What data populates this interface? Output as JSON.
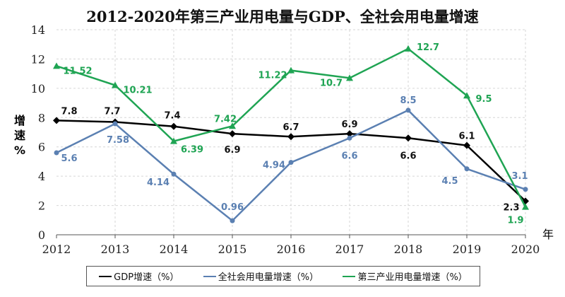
{
  "chart_data": {
    "type": "line",
    "title": "2012-2020年第三产业用电量与GDP、全社会用电量增速",
    "xlabel": "年",
    "ylabel": "增速%",
    "ylabel_chars": [
      "增",
      "速",
      "%"
    ],
    "categories": [
      "2012",
      "2013",
      "2014",
      "2015",
      "2016",
      "2017",
      "2018",
      "2019",
      "2020"
    ],
    "yticks": [
      "0",
      "2",
      "4",
      "6",
      "8",
      "10",
      "12",
      "14"
    ],
    "ylim": [
      0,
      14
    ],
    "grid": true,
    "legend_position": "bottom",
    "series": [
      {
        "name": "GDP增速（%）",
        "color": "#000000",
        "marker": "diamond",
        "values": [
          7.8,
          7.7,
          7.4,
          6.9,
          6.7,
          6.9,
          6.6,
          6.1,
          2.3
        ],
        "labels": [
          "7.8",
          "7.7",
          "7.4",
          "6.9",
          "6.7",
          "6.9",
          "6.6",
          "6.1",
          "2.3"
        ]
      },
      {
        "name": "全社会用电量增速（%）",
        "color": "#5b80b2",
        "marker": "circle",
        "values": [
          5.6,
          7.58,
          4.14,
          0.96,
          4.94,
          6.6,
          8.5,
          4.5,
          3.1
        ],
        "labels": [
          "5.6",
          "7.58",
          "4.14",
          "0.96",
          "4.94",
          "6.6",
          "8.5",
          "4.5",
          "3.1"
        ]
      },
      {
        "name": "第三产业用电量增速（%）",
        "color": "#1fa453",
        "marker": "triangle",
        "values": [
          11.52,
          10.21,
          6.39,
          7.42,
          11.22,
          10.7,
          12.7,
          9.5,
          1.9
        ],
        "labels": [
          "11.52",
          "10.21",
          "6.39",
          "7.42",
          "11.22",
          "10.7",
          "12.7",
          "9.5",
          "1.9"
        ]
      }
    ]
  }
}
